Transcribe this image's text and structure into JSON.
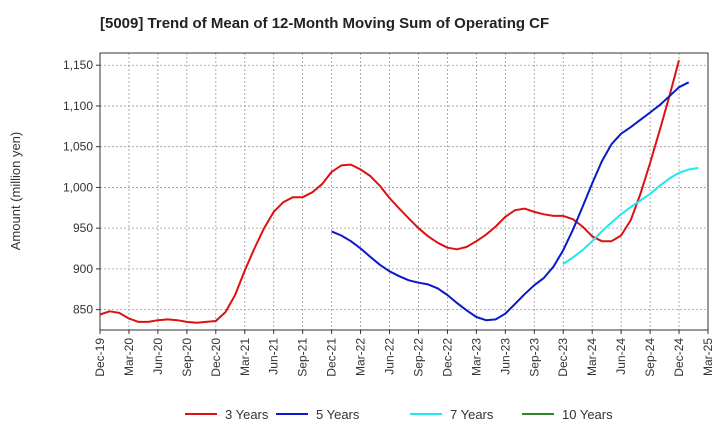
{
  "chart_data": {
    "type": "line",
    "title": "[5009]  Trend of Mean of 12-Month Moving Sum of Operating CF",
    "xlabel": "",
    "ylabel": "Amount (million yen)",
    "ylim": [
      825,
      1165
    ],
    "yticks": [
      850,
      900,
      950,
      1000,
      1050,
      1100,
      1150
    ],
    "ytick_labels": [
      "850",
      "900",
      "950",
      "1,000",
      "1,050",
      "1,100",
      "1,150"
    ],
    "x_tick_labels": [
      "Dec-19",
      "Mar-20",
      "Jun-20",
      "Sep-20",
      "Dec-20",
      "Mar-21",
      "Jun-21",
      "Sep-21",
      "Dec-21",
      "Mar-22",
      "Jun-22",
      "Sep-22",
      "Dec-22",
      "Mar-23",
      "Jun-23",
      "Sep-23",
      "Dec-23",
      "Mar-24",
      "Jun-24",
      "Sep-24",
      "Dec-24",
      "Mar-25"
    ],
    "grid": true,
    "legend_position": "bottom",
    "series": [
      {
        "name": "3 Years",
        "color": "#dd1111",
        "start_index": 0,
        "values": [
          844,
          848,
          846,
          839,
          835,
          835,
          837,
          838,
          837,
          835,
          834,
          835,
          836,
          847,
          868,
          898,
          925,
          950,
          970,
          982,
          988,
          988,
          994,
          1004,
          1019,
          1027,
          1028,
          1022,
          1014,
          1002,
          987,
          974,
          962,
          950,
          940,
          932,
          926,
          924,
          927,
          934,
          942,
          952,
          964,
          972,
          974,
          970,
          967,
          965,
          965,
          961,
          952,
          940,
          934,
          934,
          941,
          960,
          992,
          1030,
          1070,
          1112,
          1156
        ]
      },
      {
        "name": "5 Years",
        "color": "#0a18c8",
        "start_index": 24,
        "values": [
          946,
          941,
          934,
          925,
          915,
          905,
          897,
          891,
          886,
          883,
          881,
          876,
          868,
          858,
          849,
          841,
          837,
          838,
          845,
          857,
          869,
          880,
          889,
          903,
          923,
          948,
          976,
          1005,
          1032,
          1053,
          1066,
          1074,
          1083,
          1092,
          1101,
          1112,
          1123,
          1129
        ]
      },
      {
        "name": "7 Years",
        "color": "#22e6ef",
        "start_index": 48,
        "values": [
          906,
          914,
          923,
          934,
          946,
          957,
          967,
          976,
          984,
          992,
          1002,
          1011,
          1018,
          1022,
          1024
        ]
      },
      {
        "name": "10 Years",
        "color": "#2a8a2a",
        "start_index": 0,
        "values": []
      }
    ]
  }
}
